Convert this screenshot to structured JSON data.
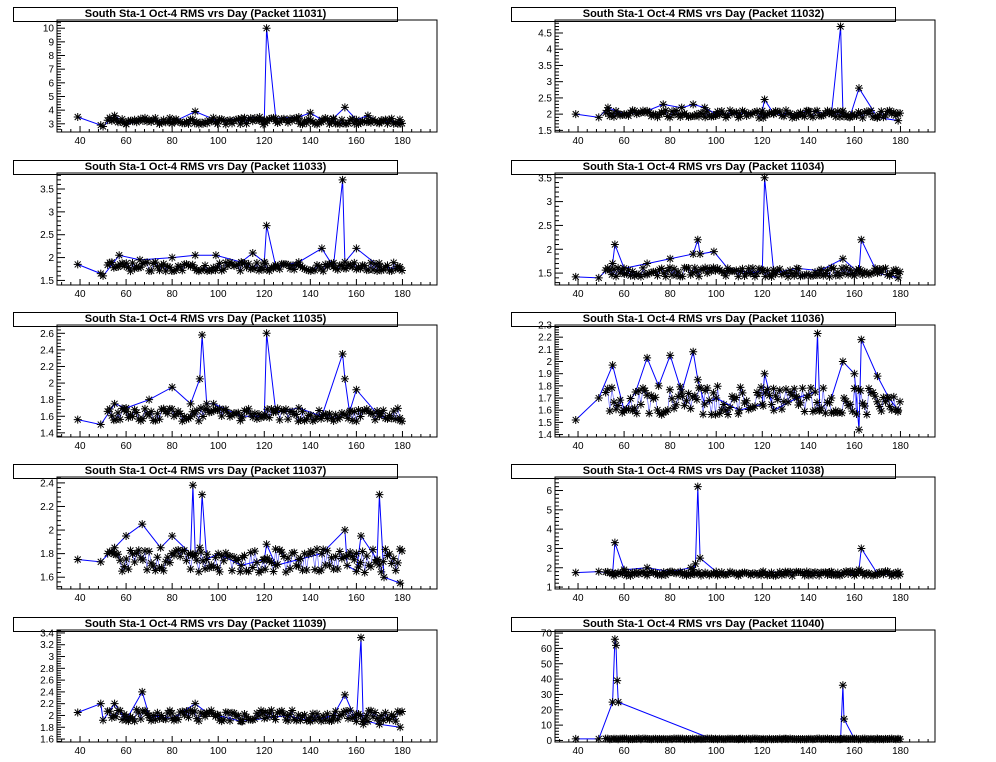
{
  "colors": {
    "line": "#0000ff",
    "marker": "#000000",
    "frame": "#000000",
    "background": "#ffffff"
  },
  "chart_data": [
    {
      "type": "line",
      "title": "South Sta-1 Oct-4 RMS vrs Day (Packet 11031)",
      "xlim": [
        30,
        195
      ],
      "ylim": [
        2.4,
        10.6
      ],
      "xticks": [
        40,
        60,
        80,
        100,
        120,
        140,
        160,
        180
      ],
      "yticks": [
        3,
        4,
        5,
        6,
        7,
        8,
        9,
        10
      ],
      "ytick_labels": [
        "3",
        "4",
        "5",
        "6",
        "7",
        "8",
        "9",
        "10"
      ],
      "series": [
        {
          "name": "RMS",
          "baseline": 3.2,
          "noise": 0.25,
          "x": [
            39,
            49,
            50,
            55,
            60,
            70,
            80,
            90,
            100,
            110,
            118,
            120,
            121,
            125,
            135,
            140,
            145,
            150,
            155,
            160,
            165,
            170,
            175,
            179
          ],
          "y": [
            3.5,
            2.9,
            2.8,
            3.6,
            3.0,
            3.3,
            3.1,
            3.9,
            3.2,
            3.4,
            3.5,
            3.3,
            10.0,
            3.4,
            3.5,
            3.8,
            3.3,
            3.4,
            4.2,
            3.3,
            3.6,
            3.1,
            3.2,
            3.0
          ]
        }
      ]
    },
    {
      "type": "line",
      "title": "South Sta-1 Oct-4 RMS vrs Day (Packet 11032)",
      "xlim": [
        30,
        195
      ],
      "ylim": [
        1.45,
        4.9
      ],
      "xticks": [
        40,
        60,
        80,
        100,
        120,
        140,
        160,
        180
      ],
      "yticks": [
        1.5,
        2,
        2.5,
        3,
        3.5,
        4,
        4.5
      ],
      "ytick_labels": [
        "1.5",
        "2",
        "2.5",
        "3",
        "3.5",
        "4",
        "4.5"
      ],
      "series": [
        {
          "name": "RMS",
          "baseline": 2.0,
          "noise": 0.12,
          "x": [
            39,
            49,
            53,
            60,
            70,
            77,
            85,
            90,
            95,
            100,
            110,
            120,
            121,
            125,
            135,
            140,
            150,
            154,
            155,
            158,
            162,
            170,
            179
          ],
          "y": [
            2.0,
            1.9,
            2.2,
            2.0,
            2.1,
            2.3,
            2.2,
            2.3,
            2.2,
            2.0,
            2.0,
            2.1,
            2.45,
            2.0,
            2.0,
            2.1,
            2.0,
            4.7,
            2.1,
            1.9,
            2.8,
            1.9,
            1.8
          ]
        }
      ]
    },
    {
      "type": "line",
      "title": "South Sta-1 Oct-4 RMS vrs Day (Packet 11033)",
      "xlim": [
        30,
        195
      ],
      "ylim": [
        1.4,
        3.85
      ],
      "xticks": [
        40,
        60,
        80,
        100,
        120,
        140,
        160,
        180
      ],
      "yticks": [
        1.5,
        2,
        2.5,
        3,
        3.5
      ],
      "ytick_labels": [
        "1.5",
        "2",
        "2.5",
        "3",
        "3.5"
      ],
      "series": [
        {
          "name": "RMS",
          "baseline": 1.8,
          "noise": 0.1,
          "x": [
            39,
            49,
            50,
            57,
            66,
            80,
            90,
            99,
            110,
            115,
            120,
            121,
            125,
            135,
            145,
            150,
            154,
            155,
            160,
            170,
            179
          ],
          "y": [
            1.85,
            1.65,
            1.6,
            2.05,
            1.95,
            2.0,
            2.05,
            2.05,
            1.9,
            2.1,
            1.9,
            2.7,
            1.8,
            1.9,
            2.2,
            1.8,
            3.7,
            1.9,
            2.2,
            1.8,
            1.75
          ]
        }
      ]
    },
    {
      "type": "line",
      "title": "South Sta-1 Oct-4 RMS vrs Day (Packet 11034)",
      "xlim": [
        30,
        195
      ],
      "ylim": [
        1.25,
        3.6
      ],
      "xticks": [
        40,
        60,
        80,
        100,
        120,
        140,
        160,
        180
      ],
      "yticks": [
        1.5,
        2,
        2.5,
        3,
        3.5
      ],
      "ytick_labels": [
        "1.5",
        "2",
        "2.5",
        "3",
        "3.5"
      ],
      "series": [
        {
          "name": "RMS",
          "baseline": 1.52,
          "noise": 0.1,
          "x": [
            39,
            49,
            55,
            56,
            60,
            70,
            80,
            90,
            92,
            93,
            99,
            105,
            115,
            120,
            121,
            125,
            135,
            145,
            155,
            162,
            163,
            170,
            179
          ],
          "y": [
            1.42,
            1.4,
            1.7,
            2.1,
            1.6,
            1.7,
            1.8,
            1.9,
            2.2,
            1.9,
            1.95,
            1.6,
            1.5,
            1.55,
            3.5,
            1.5,
            1.6,
            1.55,
            1.8,
            1.5,
            2.2,
            1.5,
            1.4
          ]
        }
      ]
    },
    {
      "type": "line",
      "title": "South Sta-1 Oct-4 RMS vrs Day (Packet 11035)",
      "xlim": [
        30,
        195
      ],
      "ylim": [
        1.35,
        2.7
      ],
      "xticks": [
        40,
        60,
        80,
        100,
        120,
        140,
        160,
        180
      ],
      "yticks": [
        1.4,
        1.6,
        1.8,
        2,
        2.2,
        2.4,
        2.6
      ],
      "ytick_labels": [
        "1.4",
        "1.6",
        "1.8",
        "2",
        "2.2",
        "2.4",
        "2.6"
      ],
      "series": [
        {
          "name": "RMS",
          "baseline": 1.62,
          "noise": 0.08,
          "x": [
            39,
            49,
            55,
            60,
            70,
            80,
            88,
            92,
            93,
            95,
            98,
            110,
            120,
            121,
            125,
            135,
            145,
            154,
            155,
            157,
            160,
            170,
            179
          ],
          "y": [
            1.56,
            1.5,
            1.75,
            1.7,
            1.8,
            1.95,
            1.75,
            2.05,
            2.58,
            1.75,
            1.75,
            1.6,
            1.6,
            2.6,
            1.65,
            1.7,
            1.6,
            2.35,
            2.05,
            1.65,
            1.92,
            1.6,
            1.55
          ]
        }
      ]
    },
    {
      "type": "line",
      "title": "South Sta-1 Oct-4 RMS vrs Day (Packet 11036)",
      "xlim": [
        30,
        195
      ],
      "ylim": [
        1.38,
        2.3
      ],
      "xticks": [
        40,
        60,
        80,
        100,
        120,
        140,
        160,
        180
      ],
      "yticks": [
        1.4,
        1.5,
        1.6,
        1.7,
        1.8,
        1.9,
        2,
        2.1,
        2.2,
        2.3
      ],
      "ytick_labels": [
        "1.4",
        "1.5",
        "1.6",
        "1.7",
        "1.8",
        "1.9",
        "2",
        "2.1",
        "2.2",
        "2.3"
      ],
      "series": [
        {
          "name": "RMS",
          "baseline": 1.68,
          "noise": 0.12,
          "x": [
            39,
            49,
            55,
            60,
            65,
            70,
            75,
            80,
            85,
            90,
            92,
            95,
            100,
            110,
            120,
            121,
            125,
            135,
            143,
            144,
            145,
            150,
            155,
            160,
            162,
            163,
            170,
            175,
            179
          ],
          "y": [
            1.52,
            1.7,
            1.97,
            1.6,
            1.75,
            2.03,
            1.8,
            2.05,
            1.75,
            2.08,
            1.85,
            1.65,
            1.7,
            1.6,
            1.65,
            1.9,
            1.6,
            1.7,
            1.75,
            2.23,
            1.6,
            1.7,
            2.0,
            1.9,
            1.44,
            2.18,
            1.88,
            1.7,
            1.6
          ]
        }
      ]
    },
    {
      "type": "line",
      "title": "South Sta-1 Oct-4 RMS vrs Day (Packet 11037)",
      "xlim": [
        30,
        195
      ],
      "ylim": [
        1.5,
        2.45
      ],
      "xticks": [
        40,
        60,
        80,
        100,
        120,
        140,
        160,
        180
      ],
      "yticks": [
        1.6,
        1.8,
        2,
        2.2,
        2.4
      ],
      "ytick_labels": [
        "1.6",
        "1.8",
        "2",
        "2.2",
        "2.4"
      ],
      "series": [
        {
          "name": "RMS",
          "baseline": 1.74,
          "noise": 0.1,
          "x": [
            39,
            49,
            55,
            60,
            67,
            75,
            80,
            88,
            89,
            90,
            92,
            93,
            95,
            100,
            110,
            120,
            121,
            125,
            135,
            145,
            155,
            156,
            160,
            162,
            169,
            170,
            172,
            179
          ],
          "y": [
            1.75,
            1.73,
            1.85,
            1.95,
            2.05,
            1.85,
            1.95,
            1.8,
            2.38,
            1.8,
            1.85,
            2.3,
            1.75,
            1.8,
            1.7,
            1.75,
            1.88,
            1.7,
            1.75,
            1.8,
            2.0,
            1.7,
            1.65,
            1.95,
            1.75,
            2.3,
            1.6,
            1.55
          ]
        }
      ]
    },
    {
      "type": "line",
      "title": "South Sta-1 Oct-4 RMS vrs Day (Packet 11038)",
      "xlim": [
        30,
        195
      ],
      "ylim": [
        0.9,
        6.7
      ],
      "xticks": [
        40,
        60,
        80,
        100,
        120,
        140,
        160,
        180
      ],
      "yticks": [
        1,
        2,
        3,
        4,
        5,
        6
      ],
      "ytick_labels": [
        "1",
        "2",
        "3",
        "4",
        "5",
        "6"
      ],
      "series": [
        {
          "name": "RMS",
          "baseline": 1.7,
          "noise": 0.12,
          "x": [
            39,
            49,
            55,
            56,
            60,
            70,
            80,
            89,
            90,
            91,
            92,
            93,
            100,
            110,
            120,
            130,
            140,
            150,
            160,
            162,
            163,
            170,
            179
          ],
          "y": [
            1.75,
            1.8,
            1.7,
            3.3,
            1.9,
            2.0,
            1.8,
            2.0,
            1.9,
            2.2,
            6.2,
            2.5,
            1.8,
            1.7,
            1.75,
            1.8,
            1.7,
            1.8,
            1.6,
            1.9,
            3.0,
            1.7,
            1.6
          ]
        }
      ]
    },
    {
      "type": "line",
      "title": "South Sta-1 Oct-4 RMS vrs Day (Packet 11039)",
      "xlim": [
        30,
        195
      ],
      "ylim": [
        1.55,
        3.45
      ],
      "xticks": [
        40,
        60,
        80,
        100,
        120,
        140,
        160,
        180
      ],
      "yticks": [
        1.6,
        1.8,
        2,
        2.2,
        2.4,
        2.6,
        2.8,
        3,
        3.2,
        3.4
      ],
      "ytick_labels": [
        "1.6",
        "1.8",
        "2",
        "2.2",
        "2.4",
        "2.6",
        "2.8",
        "3",
        "3.2",
        "3.4"
      ],
      "series": [
        {
          "name": "RMS",
          "baseline": 2.0,
          "noise": 0.1,
          "x": [
            39,
            49,
            50,
            55,
            60,
            67,
            70,
            80,
            90,
            95,
            100,
            110,
            120,
            130,
            140,
            150,
            155,
            160,
            162,
            163,
            165,
            170,
            179
          ],
          "y": [
            2.05,
            2.2,
            1.92,
            2.2,
            1.92,
            2.4,
            2.0,
            1.95,
            2.2,
            2.05,
            2.0,
            1.9,
            1.95,
            2.0,
            1.9,
            2.0,
            2.35,
            1.9,
            3.32,
            1.85,
            1.9,
            1.85,
            1.8
          ]
        }
      ]
    },
    {
      "type": "line",
      "title": "South Sta-1 Oct-4 RMS vrs Day (Packet 11040)",
      "xlim": [
        30,
        195
      ],
      "ylim": [
        -1,
        72
      ],
      "xticks": [
        40,
        60,
        80,
        100,
        120,
        140,
        160,
        180
      ],
      "yticks": [
        0,
        10,
        20,
        30,
        40,
        50,
        60,
        70
      ],
      "ytick_labels": [
        "0",
        "10",
        "20",
        "30",
        "40",
        "50",
        "60",
        "70"
      ],
      "series": [
        {
          "name": "RMS",
          "baseline": 1.0,
          "noise": 0.25,
          "x": [
            39,
            49,
            55,
            56,
            56.5,
            57,
            57.5,
            98,
            110,
            130,
            150,
            154,
            155,
            155.5,
            160,
            170,
            179
          ],
          "y": [
            1.0,
            1.0,
            25,
            66,
            62,
            39,
            25,
            1.0,
            1.0,
            1.0,
            1.0,
            1.0,
            36,
            14,
            1.0,
            1.0,
            1.0
          ]
        }
      ]
    }
  ]
}
